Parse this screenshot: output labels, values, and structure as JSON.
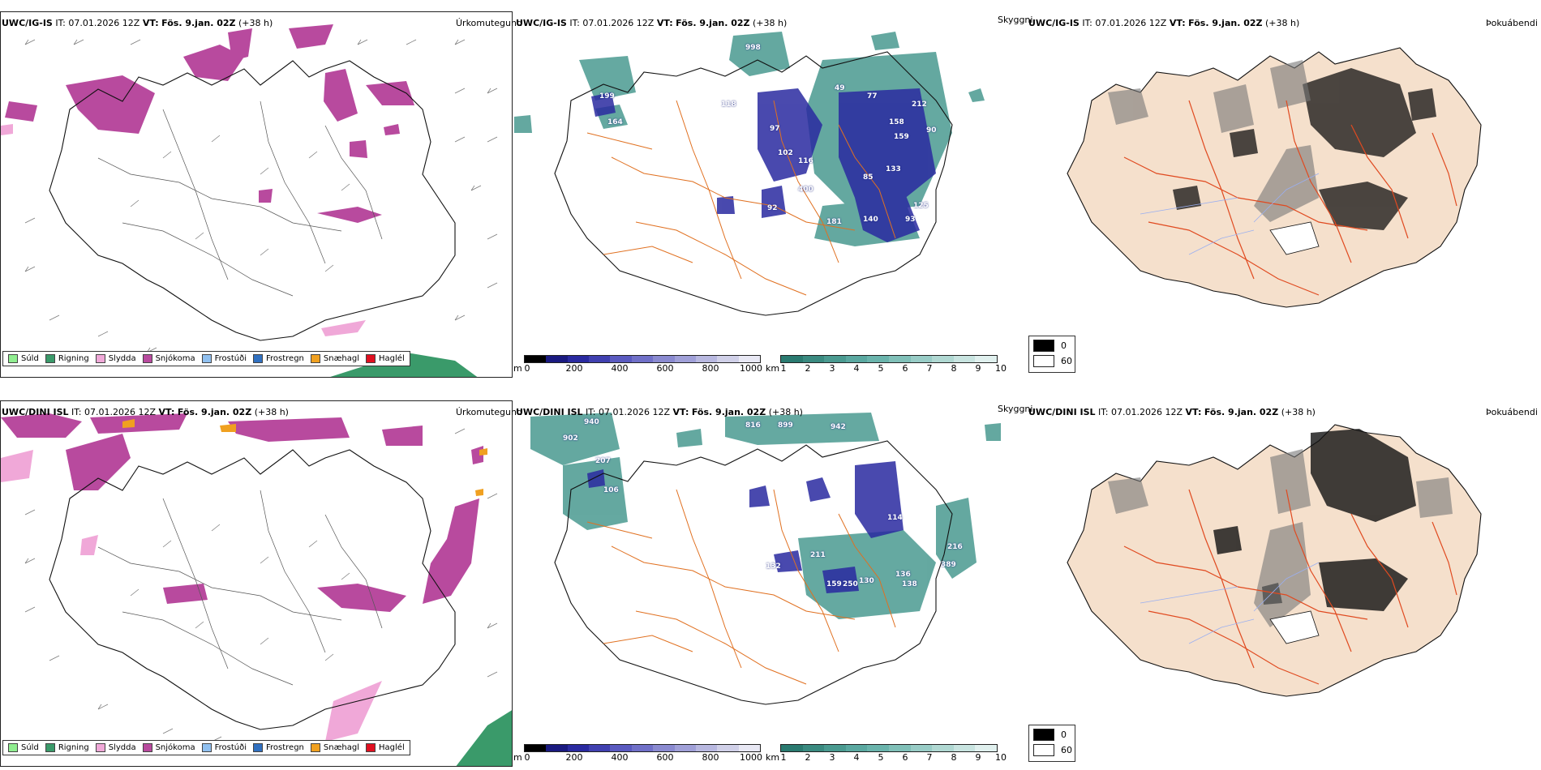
{
  "rows": [
    {
      "model": "UWC/IG-IS",
      "it_label": "IT:",
      "it_value": "07.01.2026 12Z",
      "vt_label": "VT:",
      "vt_value": "Fös. 9.jan. 02Z",
      "lead": "(+38 h)",
      "precip_labels": [],
      "cloud_labels": [
        "998",
        "199",
        "164",
        "118",
        "97",
        "102",
        "116",
        "49",
        "77",
        "212",
        "158",
        "159",
        "90",
        "400",
        "92",
        "181",
        "140",
        "93",
        "125",
        "133",
        "85"
      ],
      "fog_note": ""
    },
    {
      "model": "UWC/DINI ISL",
      "it_label": "IT:",
      "it_value": "07.01.2026 12Z",
      "vt_label": "VT:",
      "vt_value": "Fös. 9.jan. 02Z",
      "lead": "(+38 h)",
      "precip_labels": [],
      "cloud_labels": [
        "940",
        "902",
        "207",
        "106",
        "816",
        "899",
        "942",
        "114",
        "136",
        "211",
        "389",
        "132",
        "159",
        "250",
        "130",
        "138",
        "216"
      ],
      "fog_note": ""
    }
  ],
  "panel_titles": {
    "precip": "Úrkomutegund",
    "cloud": "Skyggni",
    "fog": "Þokuábendi"
  },
  "precip_legend": [
    {
      "label": "Súld",
      "color": "#90ee90"
    },
    {
      "label": "Rigning",
      "color": "#3a9a6a"
    },
    {
      "label": "Slydda",
      "color": "#f0a8d8"
    },
    {
      "label": "Snjókoma",
      "color": "#b84a9e"
    },
    {
      "label": "Frostúði",
      "color": "#90c0f0"
    },
    {
      "label": "Frostregn",
      "color": "#3070c0"
    },
    {
      "label": "Snæhagl",
      "color": "#f0a020"
    },
    {
      "label": "Haglél",
      "color": "#e01020"
    }
  ],
  "cloudbase_scale": {
    "unit": "m",
    "ticks": [
      "0",
      "200",
      "400",
      "600",
      "800",
      "1000"
    ],
    "colors": [
      "#000000",
      "#1a1a80",
      "#2a2aa0",
      "#4040b0",
      "#5a5ac0",
      "#7070c8",
      "#8a8ad0",
      "#a0a0d8",
      "#b8b8e0",
      "#d0d0e8",
      "#e8e8f4"
    ]
  },
  "visibility_scale": {
    "unit": "km",
    "ticks": [
      "1",
      "2",
      "3",
      "4",
      "5",
      "6",
      "7",
      "8",
      "9",
      "10"
    ],
    "colors": [
      "#2a7a70",
      "#3a8a80",
      "#4a9a90",
      "#5aa8a0",
      "#6ab4ac",
      "#80c0b8",
      "#98ccc6",
      "#b0d8d2",
      "#c8e4e0",
      "#e0f0ee"
    ]
  },
  "fog_legend": [
    {
      "label": "0",
      "color": "#000000"
    },
    {
      "label": "60",
      "color": "#ffffff"
    }
  ]
}
